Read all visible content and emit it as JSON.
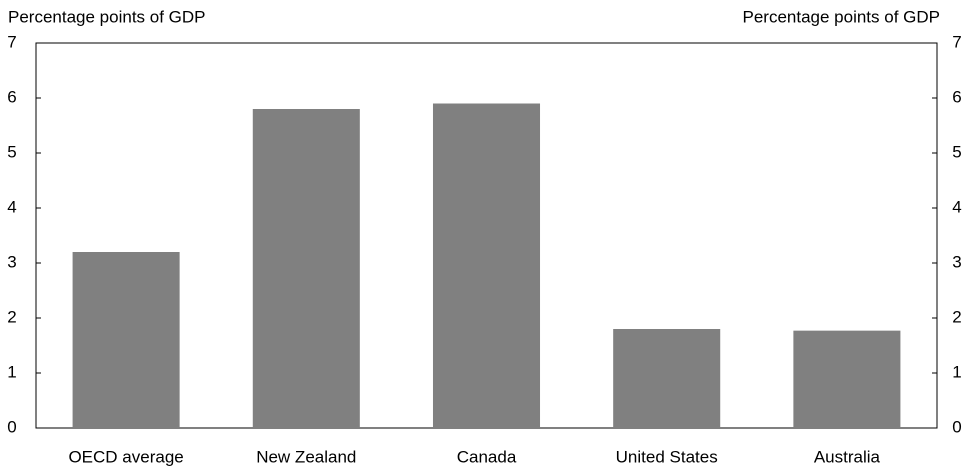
{
  "chart_data": {
    "type": "bar",
    "ylabel": "Percentage points of GDP",
    "y2label": "Percentage points of GDP",
    "categories": [
      "OECD average",
      "New Zealand",
      "Canada",
      "United States",
      "Australia"
    ],
    "values": [
      3.2,
      5.8,
      5.9,
      1.8,
      1.77
    ],
    "color": "#808080",
    "ylim": [
      0,
      7
    ],
    "yticks": [
      0,
      1,
      2,
      3,
      4,
      5,
      6,
      7
    ],
    "y2lim": [
      0,
      7
    ],
    "y2ticks": [
      0,
      1,
      2,
      3,
      4,
      5,
      6,
      7
    ],
    "grid": false
  }
}
